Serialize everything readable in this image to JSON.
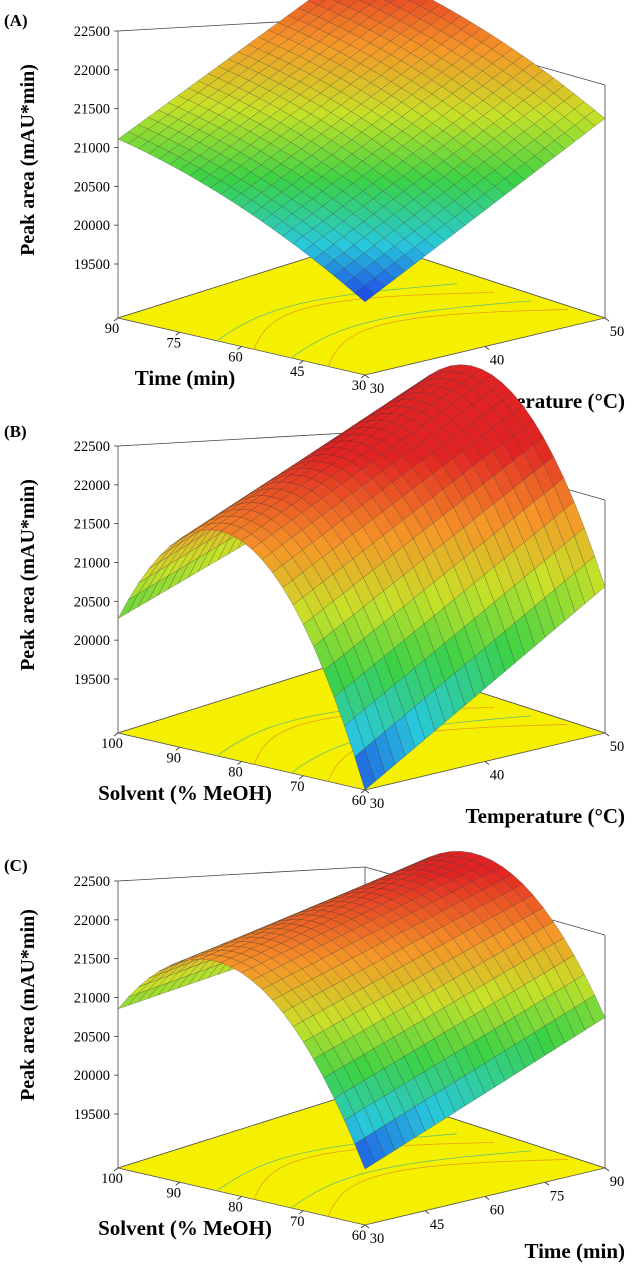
{
  "chart_data": [
    {
      "type": "surface",
      "panel_label": "(A)",
      "zlabel": "Peak area (mAU*min)",
      "zticks": [
        "22500",
        "22000",
        "21500",
        "21000",
        "20500",
        "20000",
        "19500"
      ],
      "z_range": [
        19000,
        22500
      ],
      "left_axis": {
        "label": "Time (min)",
        "ticks": [
          "90",
          "75",
          "60",
          "45",
          "30"
        ],
        "range": [
          30,
          90
        ]
      },
      "right_axis": {
        "label": "Temperature (°C)",
        "ticks": [
          "30",
          "40",
          "50"
        ],
        "range": [
          30,
          50
        ]
      },
      "surface_corners": {
        "left_high_right_low": 21080,
        "left_low_right_low": 19850,
        "left_low_right_high": 21320,
        "left_high_right_high": 22450
      },
      "surface_curvature": 150,
      "surface_color_range": [
        19850,
        22450
      ]
    },
    {
      "type": "surface",
      "panel_label": "(B)",
      "zlabel": "Peak area (mAU*min)",
      "zticks": [
        "22500",
        "22000",
        "21500",
        "21000",
        "20500",
        "20000",
        "19500"
      ],
      "z_range": [
        19000,
        22500
      ],
      "left_axis": {
        "label": "Solvent (% MeOH)",
        "ticks": [
          "100",
          "90",
          "80",
          "70",
          "60"
        ],
        "range": [
          60,
          100
        ]
      },
      "right_axis": {
        "label": "Temperature (°C)",
        "ticks": [
          "30",
          "40",
          "50"
        ],
        "range": [
          30,
          50
        ]
      },
      "surface_corners": {
        "left_high_right_low": 20330,
        "left_low_right_low": 19000,
        "left_low_right_high": 20700,
        "left_high_right_high": 21300
      },
      "surface_curvature": 1900,
      "surface_color_range": [
        19000,
        22200
      ]
    },
    {
      "type": "surface",
      "panel_label": "(C)",
      "zlabel": "Peak area (mAU*min)",
      "zticks": [
        "22500",
        "22000",
        "21500",
        "21000",
        "20500",
        "20000",
        "19500"
      ],
      "z_range": [
        19000,
        22500
      ],
      "left_axis": {
        "label": "Solvent (% MeOH)",
        "ticks": [
          "100",
          "90",
          "80",
          "70",
          "60"
        ],
        "range": [
          60,
          100
        ]
      },
      "right_axis": {
        "label": "Time (min)",
        "ticks": [
          "30",
          "45",
          "60",
          "75",
          "90"
        ],
        "range": [
          30,
          90
        ]
      },
      "surface_corners": {
        "left_high_right_low": 20850,
        "left_low_right_low": 19650,
        "left_low_right_high": 20750,
        "left_high_right_high": 21150
      },
      "surface_curvature": 1350,
      "surface_color_range": [
        19650,
        22200
      ]
    }
  ]
}
